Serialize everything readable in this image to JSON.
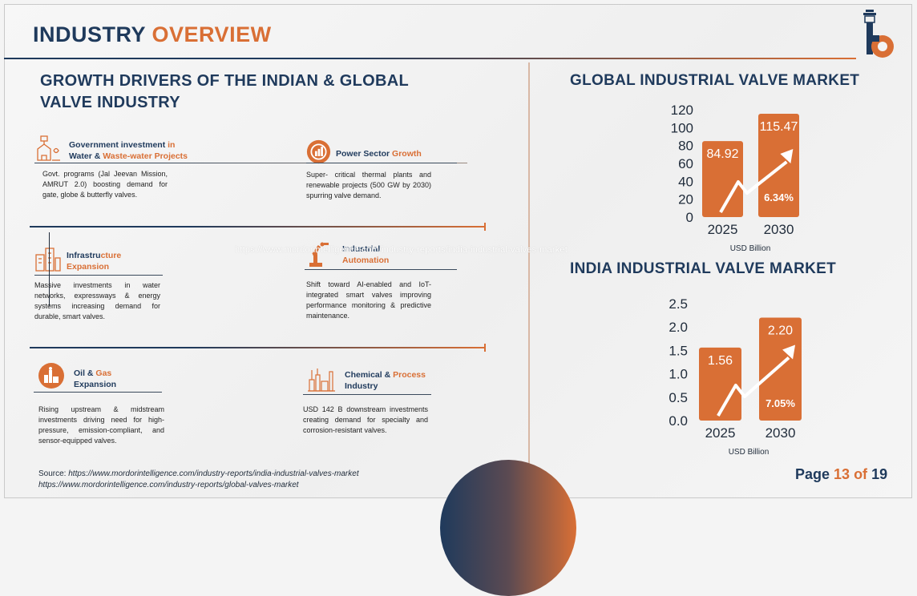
{
  "header": {
    "title_part1": "INDUSTRY ",
    "title_part2": "OVERVIEW",
    "logo": "company-logo-icon"
  },
  "drivers_section": {
    "heading_line1": "GROWTH DRIVERS OF THE INDIAN & GLOBAL",
    "heading_line2": "VALVE INDUSTRY",
    "items": [
      {
        "icon": "water-plant-icon",
        "label_a": "Government investment ",
        "label_b": "in",
        "label_c": "Water & ",
        "label_d": "Waste-water Projects",
        "desc": "Govt. programs (Jal Jeevan Mission, AMRUT 2.0) boosting demand for gate, globe & butterfly valves."
      },
      {
        "icon": "power-gauge-icon",
        "label_a": "Power Sector ",
        "label_b": "Growth",
        "desc": "Super- critical thermal plants and renewable projects (500 GW by 2030) spurring valve demand."
      },
      {
        "icon": "city-buildings-icon",
        "label_a": "Infrastru",
        "label_b": "cture",
        "label_c": "Expansion",
        "desc": "Massive investments in water networks, expressways & energy systems increasing demand for durable, smart valves."
      },
      {
        "icon": "robot-arm-icon",
        "label_a": "Industrial",
        "label_b": "Automation",
        "desc": "Shift toward AI-enabled and IoT-integrated smart valves improving performance monitoring & predictive maintenance."
      },
      {
        "icon": "oil-refinery-icon",
        "label_a": "Oil & ",
        "label_b": "Gas",
        "label_c": "Expansion",
        "desc": "Rising upstream & midstream investments driving need for high-pressure, emission-compliant, and sensor-equipped valves."
      },
      {
        "icon": "chemical-plant-icon",
        "label_a": "Chemical & ",
        "label_b": "Process",
        "label_c": "Industry",
        "desc": "USD 142 B downstream investments creating demand for specialty and corrosion-resistant valves."
      }
    ]
  },
  "watermark": "https://www.mordorintelligence.com/industry-reports/india-industrial-valves-market",
  "source": {
    "prefix": "Source: ",
    "line1": "https://www.mordorintelligence.com/industry-reports/india-industrial-valves-market",
    "line2": "https://www.mordorintelligence.com/industry-reports/global-valves-market"
  },
  "page": {
    "label": "Page ",
    "current": "13",
    "of": " of ",
    "total": "19"
  },
  "colors": {
    "navy": "#1f3a5c",
    "orange": "#d96f35"
  },
  "chart_data": [
    {
      "type": "bar",
      "title": "GLOBAL INDUSTRIAL VALVE MARKET",
      "categories": [
        "2025",
        "2030"
      ],
      "values": [
        84.92,
        115.47
      ],
      "value_labels": [
        "84.92",
        "115.47"
      ],
      "yticks": [
        "0",
        "20",
        "40",
        "60",
        "80",
        "100",
        "120"
      ],
      "ylim": [
        0,
        120
      ],
      "xlabel": "USD Billion",
      "growth_label": "6.34%"
    },
    {
      "type": "bar",
      "title": "INDIA INDUSTRIAL VALVE MARKET",
      "categories": [
        "2025",
        "2030"
      ],
      "values": [
        1.56,
        2.2
      ],
      "value_labels": [
        "1.56",
        "2.20"
      ],
      "yticks": [
        "0.0",
        "0.5",
        "1.0",
        "1.5",
        "2.0",
        "2.5"
      ],
      "ylim": [
        0,
        2.5
      ],
      "xlabel": "USD Billion",
      "growth_label": "7.05%"
    }
  ]
}
